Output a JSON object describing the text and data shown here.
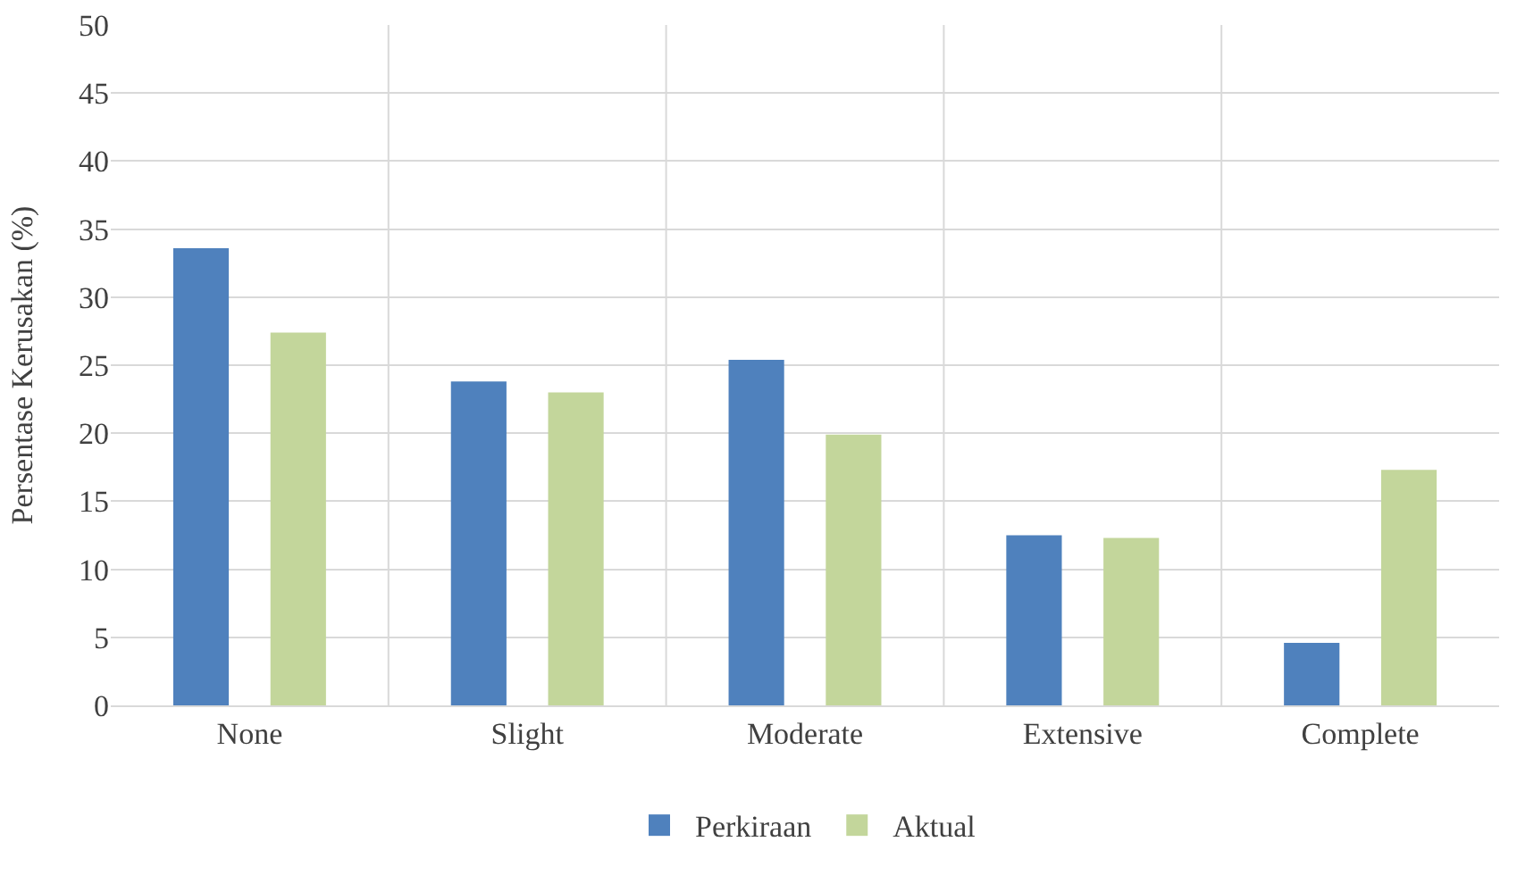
{
  "chart_data": {
    "type": "bar",
    "ylabel": "Persentase Kerusakan (%)",
    "categories": [
      "None",
      "Slight",
      "Moderate",
      "Extensive",
      "Complete"
    ],
    "series": [
      {
        "name": "Perkiraan",
        "color": "#4f81bd",
        "values": [
          33.6,
          23.8,
          25.4,
          12.5,
          4.6
        ]
      },
      {
        "name": "Aktual",
        "color": "#c3d69b",
        "values": [
          27.4,
          23.0,
          19.9,
          12.3,
          17.3
        ]
      }
    ],
    "ylim": [
      0,
      50
    ],
    "yticks": [
      0,
      5,
      10,
      15,
      20,
      25,
      30,
      35,
      40,
      45,
      50
    ],
    "grid": true,
    "legend": "bottom"
  }
}
